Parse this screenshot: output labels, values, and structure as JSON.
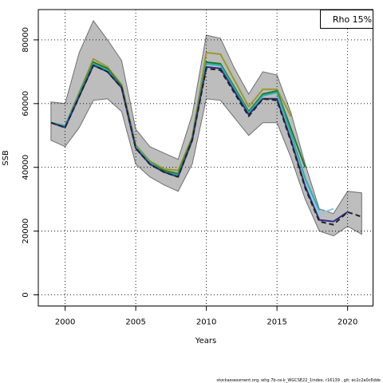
{
  "chart_data": {
    "type": "line",
    "title": "",
    "xlabel": "Years",
    "ylabel": "SSB",
    "xlim": [
      1998.1,
      2021.8
    ],
    "ylim": [
      -3500,
      89500
    ],
    "xticks": [
      2000,
      2005,
      2010,
      2015,
      2020
    ],
    "yticks": [
      0,
      20000,
      40000,
      60000,
      80000
    ],
    "grid": true,
    "legend": {
      "position": "top-right",
      "text": "Rho 15%"
    },
    "band": {
      "x": [
        1999,
        2000,
        2001,
        2002,
        2003,
        2004,
        2005,
        2006,
        2007,
        2008,
        2009,
        2010,
        2011,
        2012,
        2013,
        2014,
        2015,
        2016,
        2017,
        2018,
        2019,
        2020,
        2021
      ],
      "upper": [
        60500,
        60000,
        76000,
        86000,
        80000,
        73500,
        52000,
        46500,
        44500,
        42500,
        56500,
        81500,
        80500,
        71000,
        63000,
        70000,
        69000,
        57000,
        41000,
        27000,
        25500,
        32500,
        32000
      ],
      "lower": [
        48500,
        46500,
        52500,
        61000,
        61500,
        57500,
        41000,
        37000,
        34500,
        32500,
        41000,
        61500,
        61000,
        55500,
        50000,
        54000,
        54000,
        43000,
        30000,
        20000,
        18500,
        21500,
        19000
      ]
    },
    "series": [
      {
        "color": "#9a9a2a",
        "dash": false,
        "x": [
          1999,
          2000,
          2002,
          2003,
          2004,
          2005,
          2006,
          2007,
          2008,
          2009,
          2010,
          2011,
          2013,
          2014,
          2015,
          2016
        ],
        "values": [
          54000,
          53000,
          74000,
          71500,
          66000,
          47000,
          42000,
          39500,
          39000,
          49500,
          76000,
          75500,
          59000,
          64500,
          64500,
          56000
        ]
      },
      {
        "color": "#1e7a2a",
        "dash": false,
        "x": [
          1999,
          2000,
          2002,
          2003,
          2004,
          2005,
          2006,
          2007,
          2008,
          2009,
          2010,
          2011,
          2013,
          2014,
          2015,
          2016,
          2017
        ],
        "values": [
          54000,
          53000,
          73000,
          71000,
          65500,
          46500,
          41500,
          39000,
          38000,
          49000,
          73000,
          72500,
          57500,
          63000,
          64000,
          52000,
          40000
        ]
      },
      {
        "color": "#2ab0b0",
        "dash": false,
        "x": [
          1999,
          2000,
          2002,
          2003,
          2004,
          2005,
          2006,
          2007,
          2008,
          2009,
          2010,
          2011,
          2013,
          2014,
          2015,
          2016,
          2017,
          2018
        ],
        "values": [
          54000,
          53000,
          72500,
          70500,
          65000,
          46500,
          41500,
          38500,
          37500,
          48500,
          72500,
          72000,
          57000,
          62500,
          63500,
          50500,
          36500,
          26500
        ]
      },
      {
        "color": "#8cc8e8",
        "dash": false,
        "x": [
          2017,
          2018,
          2019
        ],
        "values": [
          35000,
          25500,
          27000
        ]
      },
      {
        "color": "#2e2e8c",
        "dash": false,
        "x": [
          1999,
          2000,
          2002,
          2003,
          2004,
          2005,
          2006,
          2007,
          2008,
          2009,
          2010,
          2011,
          2013,
          2014,
          2015,
          2016,
          2017,
          2018,
          2019,
          2020
        ],
        "values": [
          54000,
          52500,
          72000,
          70000,
          65000,
          46000,
          41000,
          38500,
          37000,
          48500,
          71500,
          71000,
          56500,
          61500,
          61500,
          48500,
          34000,
          23500,
          23000,
          26000
        ]
      },
      {
        "color": "#222222",
        "dash": true,
        "x": [
          1999,
          2000,
          2002,
          2003,
          2004,
          2005,
          2006,
          2007,
          2008,
          2009,
          2010,
          2011,
          2013,
          2014,
          2015,
          2016,
          2017,
          2018,
          2019,
          2020,
          2021
        ],
        "values": [
          54000,
          52500,
          72000,
          70000,
          65000,
          46000,
          41000,
          38500,
          37000,
          48500,
          71000,
          70500,
          56000,
          61500,
          61000,
          48000,
          33500,
          23000,
          22000,
          26000,
          24500
        ]
      }
    ]
  },
  "footer": {
    "text": "stockassessment.org, whg.7b-ce-k_WGCSE22_1index, r16139 , git: ec2c2a0c6dde"
  }
}
